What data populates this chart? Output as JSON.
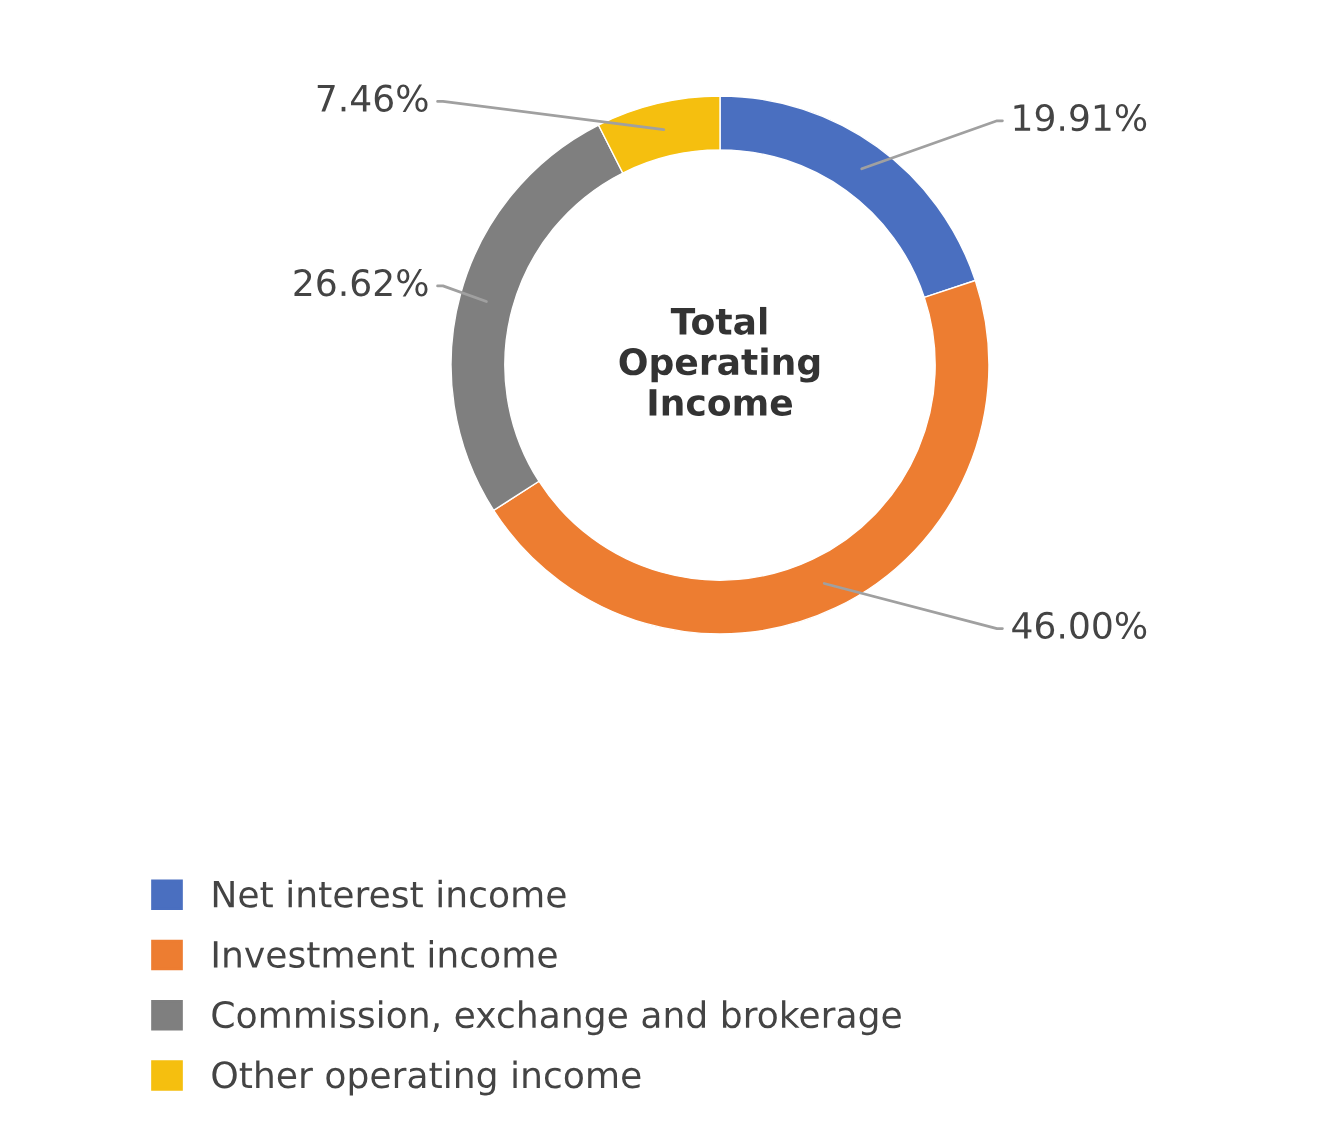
{
  "chart_data": {
    "type": "donut",
    "categories": [
      "Net interest income",
      "Investment income",
      "Commission, exchange and brokerage",
      "Other operating income"
    ],
    "values": [
      19.91,
      46.0,
      26.62,
      7.46
    ],
    "value_labels": [
      "19.91%",
      "46.00%",
      "26.62%",
      "7.46%"
    ],
    "colors": [
      "#4a6fc0",
      "#ed7d31",
      "#7f7f7f",
      "#f5bf0f"
    ],
    "annotations": [
      "Total\nOperating\nIncome"
    ],
    "legend": "bottom"
  }
}
